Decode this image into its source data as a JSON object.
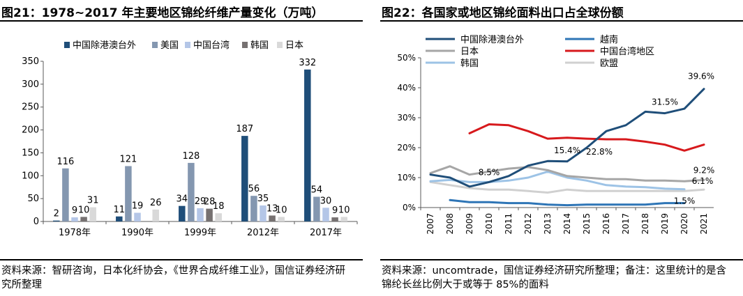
{
  "left": {
    "title": "图21：1978~2017 年主要地区锦纶纤维产量变化（万吨）",
    "source": "资料来源：智研咨询，日本化纤协会，《世界合成纤维工业》，国信证券经济研究所整理"
  },
  "right": {
    "title": "图22：各国家或地区锦纶面料出口占全球份额",
    "source": "资料来源：uncomtrade，国信证券经济研究所整理；备注：这里统计的是含锦纶长丝比例大于或等于 85%的面料"
  },
  "colors": {
    "navy": "#1f4e79",
    "steel": "#8497b0",
    "light": "#b4c6e7",
    "darkgray": "#767171",
    "lightgray": "#d9d9d9",
    "red": "#d7191c",
    "blue": "#2e75b6",
    "gray": "#a6a6a6",
    "lightblue": "#9dc3e6",
    "silver": "#d0d0d0"
  },
  "chart_data": [
    {
      "type": "bar",
      "title": "1978~2017 年主要地区锦纶纤维产量变化（万吨）",
      "categories": [
        "1978年",
        "1990年",
        "1999年",
        "2012年",
        "2017年"
      ],
      "series": [
        {
          "name": "中国除港澳台外",
          "values": [
            2,
            11,
            34,
            187,
            332
          ],
          "labels": [
            "2",
            "11",
            "34",
            "187",
            "332"
          ]
        },
        {
          "name": "美国",
          "values": [
            116,
            121,
            128,
            56,
            54
          ],
          "labels": [
            "116",
            "121",
            "128",
            "56",
            "54"
          ]
        },
        {
          "name": "中国台湾",
          "values": [
            9,
            19,
            29,
            35,
            30
          ],
          "labels": [
            "9",
            "19",
            "29",
            "35",
            "30"
          ]
        },
        {
          "name": "韩国",
          "values": [
            10,
            0,
            28,
            13,
            9
          ],
          "labels": [
            "10",
            "",
            "28",
            "13",
            "9"
          ]
        },
        {
          "name": "日本",
          "values": [
            31,
            26,
            18,
            10,
            10
          ],
          "labels": [
            "31",
            "26",
            "18",
            "10",
            "10"
          ]
        }
      ],
      "yticks": [
        "0",
        "50",
        "100",
        "150",
        "200",
        "250",
        "300",
        "350"
      ],
      "ylim": [
        0,
        350
      ],
      "xlabel": "",
      "ylabel": "",
      "legend": "top"
    },
    {
      "type": "line",
      "title": "各国家或地区锦纶面料出口占全球份额",
      "x": [
        "2007",
        "2008",
        "2009",
        "2010",
        "2011",
        "2012",
        "2013",
        "2014",
        "2015",
        "2016",
        "2017",
        "2018",
        "2019",
        "2020",
        "2021"
      ],
      "series": [
        {
          "name": "中国除港澳台外",
          "values": [
            11.0,
            10.0,
            7.0,
            8.5,
            10.5,
            14.0,
            15.5,
            15.4,
            20.0,
            25.5,
            27.5,
            32.0,
            31.5,
            33.0,
            39.6
          ]
        },
        {
          "name": "越南",
          "values": [
            null,
            2.5,
            1.8,
            1.8,
            1.5,
            1.5,
            1.0,
            0.8,
            1.0,
            1.0,
            1.0,
            1.0,
            1.5,
            1.5,
            null
          ]
        },
        {
          "name": "日本",
          "values": [
            11.5,
            13.8,
            11.0,
            12.0,
            13.0,
            13.5,
            12.5,
            10.5,
            10.0,
            9.5,
            9.5,
            9.0,
            9.0,
            8.8,
            9.2
          ]
        },
        {
          "name": "中国台湾地区",
          "values": [
            null,
            null,
            24.8,
            27.8,
            27.5,
            25.5,
            23.0,
            23.3,
            23.0,
            22.8,
            22.8,
            22.0,
            21.0,
            19.0,
            21.0
          ]
        },
        {
          "name": "韩国",
          "values": [
            8.8,
            9.2,
            8.5,
            8.5,
            9.0,
            10.0,
            12.0,
            10.0,
            9.0,
            7.5,
            7.0,
            6.8,
            6.3,
            6.1,
            null
          ]
        },
        {
          "name": "欧盟",
          "values": [
            8.5,
            7.5,
            6.5,
            6.0,
            6.0,
            5.5,
            5.0,
            6.0,
            5.5,
            5.5,
            5.5,
            5.5,
            5.5,
            5.5,
            6.0
          ]
        }
      ],
      "annotations": [
        "8.5%",
        "15.4%",
        "22.8%",
        "31.5%",
        "39.6%",
        "9.2%",
        "6.1%",
        "1.5%"
      ],
      "yticks": [
        "0%",
        "10%",
        "20%",
        "30%",
        "40%",
        "50%"
      ],
      "ylim": [
        0,
        50
      ],
      "xlabel": "",
      "ylabel": "",
      "legend": "top"
    }
  ]
}
